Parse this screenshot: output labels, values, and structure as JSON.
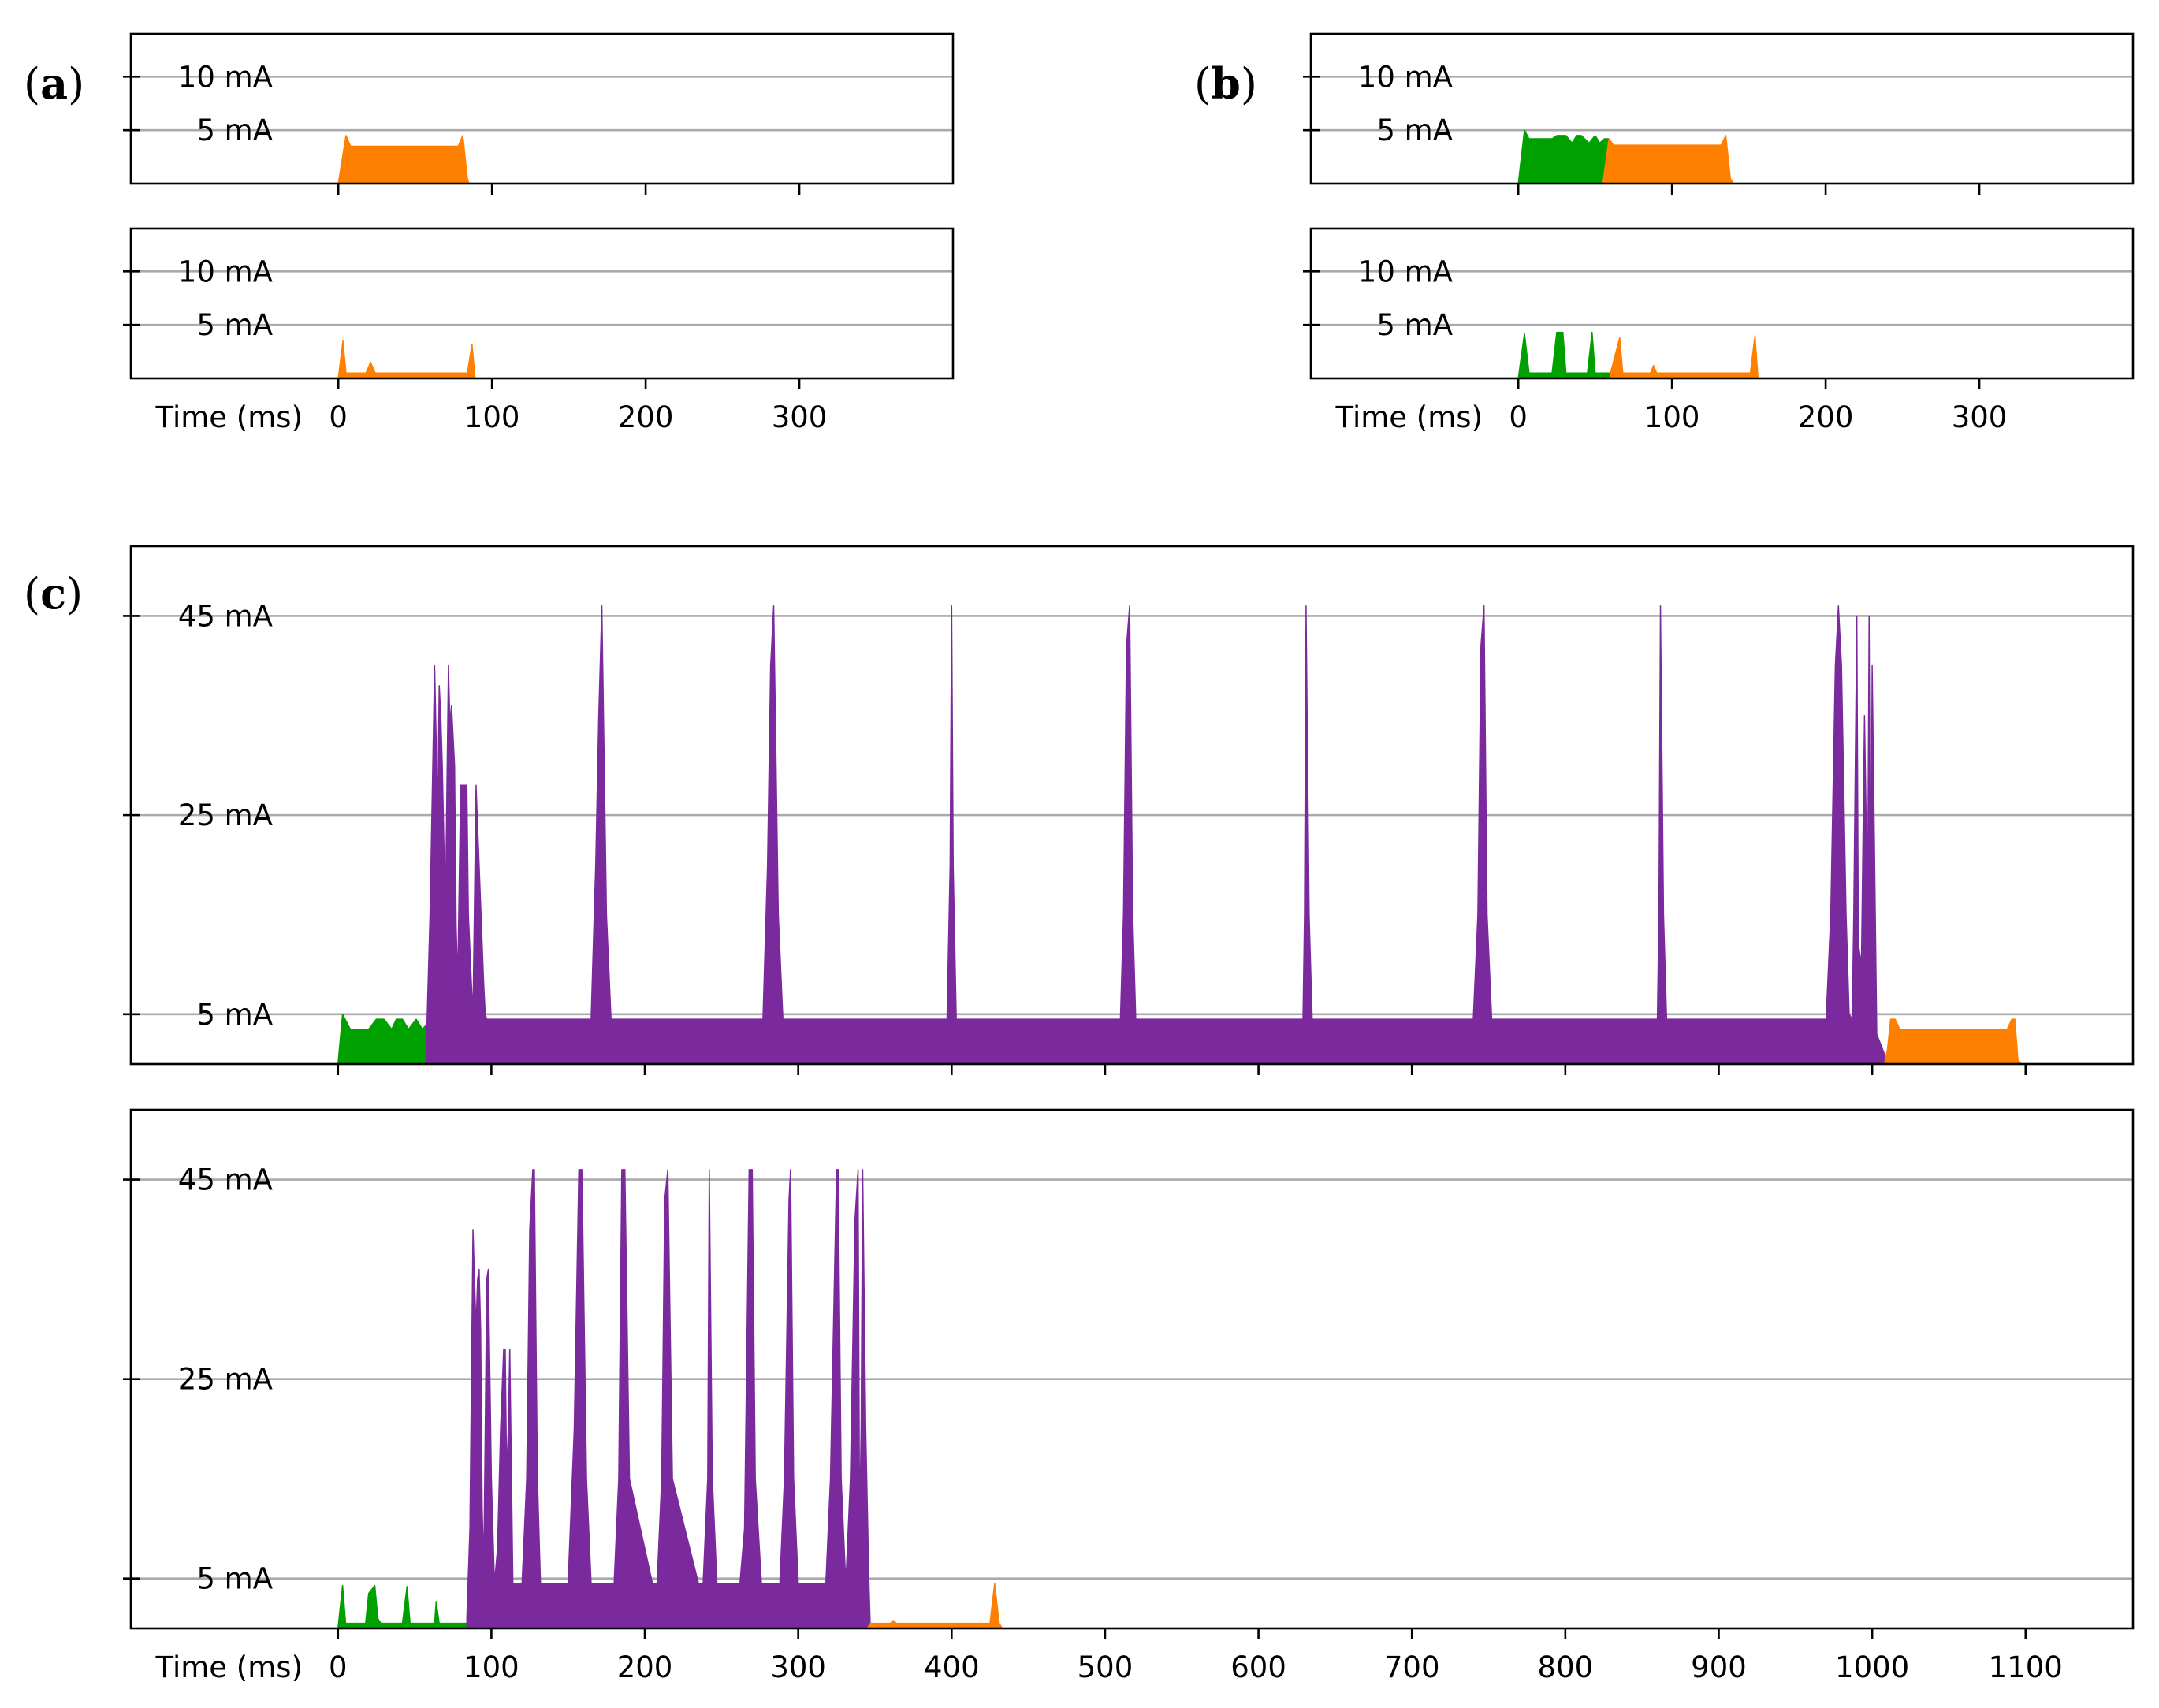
{
  "panel_labels": {
    "a": "a",
    "b": "b",
    "c": "c"
  },
  "colors": {
    "orange": "#ff8000",
    "green": "#00a000",
    "purple": "#7b2a9e",
    "grid": "#aaaaaa"
  },
  "chart_data": [
    {
      "id": "a-top",
      "panel": "a",
      "type": "area",
      "xlabel": "",
      "ylabel": "",
      "xlim": [
        -135,
        400
      ],
      "ylim": [
        0,
        14
      ],
      "yticks": [
        {
          "value": 5,
          "label": "5 mA"
        },
        {
          "value": 10,
          "label": "10 mA"
        }
      ],
      "xticks": [
        {
          "value": 0,
          "label": ""
        },
        {
          "value": 100,
          "label": ""
        },
        {
          "value": 200,
          "label": ""
        },
        {
          "value": 300,
          "label": ""
        }
      ],
      "grid": true,
      "series": [
        {
          "color_key": "orange",
          "x": [
            0,
            5,
            8,
            12,
            78,
            81,
            84,
            85
          ],
          "y": [
            0,
            4.5,
            3.5,
            3.5,
            3.5,
            4.5,
            0.5,
            0
          ]
        }
      ]
    },
    {
      "id": "a-bottom",
      "panel": "a",
      "type": "area",
      "xlabel": "Time (ms)",
      "ylabel": "",
      "xlim": [
        -135,
        400
      ],
      "ylim": [
        0,
        14
      ],
      "yticks": [
        {
          "value": 5,
          "label": "5 mA"
        },
        {
          "value": 10,
          "label": "10 mA"
        }
      ],
      "xticks": [
        {
          "value": 0,
          "label": "0"
        },
        {
          "value": 100,
          "label": "100"
        },
        {
          "value": 200,
          "label": "200"
        },
        {
          "value": 300,
          "label": "300"
        }
      ],
      "grid": true,
      "series": [
        {
          "color_key": "orange",
          "x": [
            0,
            3,
            5,
            8,
            18,
            21,
            24,
            84,
            87,
            89
          ],
          "y": [
            0,
            3.5,
            0.5,
            0.5,
            0.5,
            1.5,
            0.5,
            0.5,
            3.2,
            0
          ]
        }
      ]
    },
    {
      "id": "b-top",
      "panel": "b",
      "type": "area",
      "xlabel": "",
      "ylabel": "",
      "xlim": [
        -135,
        400
      ],
      "ylim": [
        0,
        14
      ],
      "yticks": [
        {
          "value": 5,
          "label": "5 mA"
        },
        {
          "value": 10,
          "label": "10 mA"
        }
      ],
      "xticks": [
        {
          "value": 0,
          "label": ""
        },
        {
          "value": 100,
          "label": ""
        },
        {
          "value": 200,
          "label": ""
        },
        {
          "value": 300,
          "label": ""
        }
      ],
      "grid": true,
      "series": [
        {
          "color_key": "green",
          "x": [
            0,
            4,
            7,
            10,
            22,
            25,
            31,
            35,
            38,
            41,
            46,
            50,
            53,
            56,
            59
          ],
          "y": [
            0,
            5,
            4.2,
            4.2,
            4.2,
            4.5,
            4.5,
            3.8,
            4.5,
            4.5,
            3.8,
            4.5,
            3.8,
            4.2,
            4.2
          ]
        },
        {
          "color_key": "orange",
          "x": [
            55,
            59,
            62,
            65,
            132,
            135,
            138,
            140
          ],
          "y": [
            0,
            4.2,
            3.6,
            3.6,
            3.6,
            4.5,
            0.5,
            0
          ]
        }
      ]
    },
    {
      "id": "b-bottom",
      "panel": "b",
      "type": "area",
      "xlabel": "Time (ms)",
      "ylabel": "",
      "xlim": [
        -135,
        400
      ],
      "ylim": [
        0,
        14
      ],
      "yticks": [
        {
          "value": 5,
          "label": "5 mA"
        },
        {
          "value": 10,
          "label": "10 mA"
        }
      ],
      "xticks": [
        {
          "value": 0,
          "label": "0"
        },
        {
          "value": 100,
          "label": "100"
        },
        {
          "value": 200,
          "label": "200"
        },
        {
          "value": 300,
          "label": "300"
        }
      ],
      "grid": true,
      "series": [
        {
          "color_key": "green",
          "x": [
            0,
            4,
            7,
            10,
            22,
            25,
            29,
            31,
            35,
            45,
            48,
            50,
            53,
            60,
            62
          ],
          "y": [
            0,
            4.2,
            0.5,
            0.5,
            0.5,
            4.3,
            4.3,
            0.5,
            0.5,
            0.5,
            4.3,
            0.5,
            0.5,
            0.5,
            0.5
          ]
        },
        {
          "color_key": "orange",
          "x": [
            60,
            66,
            68,
            70,
            86,
            88,
            90,
            151,
            154,
            156
          ],
          "y": [
            0.5,
            3.8,
            0.5,
            0.5,
            0.5,
            1.2,
            0.5,
            0.5,
            4,
            0
          ]
        }
      ]
    },
    {
      "id": "c-top",
      "panel": "c",
      "type": "area",
      "xlabel": "",
      "ylabel": "",
      "xlim": [
        -135,
        1170
      ],
      "ylim": [
        0,
        52
      ],
      "yticks": [
        {
          "value": 5,
          "label": "5 mA"
        },
        {
          "value": 25,
          "label": "25 mA"
        },
        {
          "value": 45,
          "label": "45 mA"
        }
      ],
      "xticks": [
        {
          "value": 0,
          "label": ""
        },
        {
          "value": 100,
          "label": ""
        },
        {
          "value": 200,
          "label": ""
        },
        {
          "value": 300,
          "label": ""
        },
        {
          "value": 400,
          "label": ""
        },
        {
          "value": 500,
          "label": ""
        },
        {
          "value": 600,
          "label": ""
        },
        {
          "value": 700,
          "label": ""
        },
        {
          "value": 800,
          "label": ""
        },
        {
          "value": 900,
          "label": ""
        },
        {
          "value": 1000,
          "label": ""
        },
        {
          "value": 1100,
          "label": ""
        }
      ],
      "grid": true,
      "series": [
        {
          "color_key": "green",
          "x": [
            0,
            3,
            8,
            20,
            25,
            30,
            35,
            38,
            42,
            46,
            51,
            55,
            58
          ],
          "y": [
            0,
            5,
            3.5,
            3.5,
            4.5,
            4.5,
            3.5,
            4.5,
            4.5,
            3.5,
            4.5,
            3.5,
            4
          ]
        },
        {
          "color_key": "purple",
          "x": [
            58,
            60,
            63,
            65,
            66,
            67,
            68,
            70,
            72,
            73,
            74,
            76,
            77,
            78,
            80,
            82,
            84,
            85,
            87,
            88,
            90,
            92,
            95,
            96,
            97,
            100,
            102,
            165,
            168,
            170,
            172,
            175,
            178,
            277,
            280,
            282,
            284,
            287,
            290,
            397,
            399,
            400,
            401,
            403,
            510,
            512,
            514,
            516,
            518,
            520,
            629,
            630,
            631,
            633,
            635,
            740,
            743,
            745,
            747,
            749,
            752,
            860,
            861,
            862,
            864,
            866,
            970,
            973,
            976,
            978,
            980,
            983,
            985,
            987,
            988,
            990,
            991,
            993,
            995,
            997,
            998,
            999,
            1000,
            1003,
            1008,
            1010
          ],
          "y": [
            4,
            15,
            40,
            25,
            38,
            35,
            30,
            15,
            40,
            34,
            36,
            30,
            14,
            8,
            28,
            28,
            28,
            15,
            8,
            5,
            28,
            20,
            8,
            5,
            4.5,
            4.5,
            4.5,
            4.5,
            20,
            35,
            46,
            15,
            4.5,
            4.5,
            20,
            40,
            46,
            15,
            4.5,
            4.5,
            20,
            46,
            20,
            4.5,
            4.5,
            15,
            42,
            46,
            15,
            4.5,
            4.5,
            15,
            46,
            15,
            4.5,
            4.5,
            15,
            42,
            46,
            15,
            4.5,
            4.5,
            15,
            46,
            15,
            4.5,
            4.5,
            15,
            40,
            46,
            40,
            15,
            5,
            4.5,
            15,
            45,
            12,
            10,
            35,
            15,
            45,
            12,
            40,
            3,
            1,
            0
          ]
        },
        {
          "color_key": "orange",
          "x": [
            1008,
            1010,
            1012,
            1015,
            1018,
            1020,
            1088,
            1091,
            1093,
            1095,
            1097
          ],
          "y": [
            0,
            1.5,
            4.5,
            4.5,
            3.5,
            3.5,
            3.5,
            4.5,
            4.5,
            0.5,
            0
          ]
        }
      ]
    },
    {
      "id": "c-bottom",
      "panel": "c",
      "type": "area",
      "xlabel": "Time (ms)",
      "ylabel": "",
      "xlim": [
        -135,
        1170
      ],
      "ylim": [
        0,
        52
      ],
      "yticks": [
        {
          "value": 5,
          "label": "5 mA"
        },
        {
          "value": 25,
          "label": "25 mA"
        },
        {
          "value": 45,
          "label": "45 mA"
        }
      ],
      "xticks": [
        {
          "value": 0,
          "label": "0"
        },
        {
          "value": 100,
          "label": "100"
        },
        {
          "value": 200,
          "label": "200"
        },
        {
          "value": 300,
          "label": "300"
        },
        {
          "value": 400,
          "label": "400"
        },
        {
          "value": 500,
          "label": "500"
        },
        {
          "value": 600,
          "label": "600"
        },
        {
          "value": 700,
          "label": "700"
        },
        {
          "value": 800,
          "label": "800"
        },
        {
          "value": 900,
          "label": "900"
        },
        {
          "value": 1000,
          "label": "1000"
        },
        {
          "value": 1100,
          "label": "1100"
        }
      ],
      "grid": true,
      "series": [
        {
          "color_key": "green",
          "x": [
            0,
            3,
            5,
            8,
            18,
            20,
            24,
            26,
            28,
            30,
            42,
            45,
            47,
            60,
            63,
            64,
            66,
            84,
            85
          ],
          "y": [
            0,
            4.3,
            0.5,
            0.5,
            0.5,
            3.5,
            4.3,
            1,
            0.5,
            0.5,
            0.5,
            4.2,
            0.5,
            0.5,
            0.5,
            2.7,
            0.5,
            0.5,
            0.5
          ]
        },
        {
          "color_key": "purple",
          "x": [
            84,
            86,
            88,
            90,
            91,
            92,
            93,
            94,
            95,
            96,
            97,
            98,
            100,
            102,
            104,
            106,
            108,
            109,
            110,
            111,
            112,
            114,
            116,
            120,
            123,
            125,
            127,
            128,
            130,
            132,
            135,
            150,
            154,
            157,
            159,
            162,
            165,
            180,
            183,
            185,
            187,
            190,
            205,
            208,
            211,
            213,
            215,
            218,
            235,
            238,
            241,
            242,
            244,
            247,
            262,
            265,
            268,
            270,
            272,
            276,
            288,
            291,
            294,
            295,
            297,
            300,
            318,
            321,
            325,
            326,
            328,
            331,
            334,
            337,
            339,
            340,
            341,
            342,
            344,
            346,
            347
          ],
          "y": [
            1,
            10,
            40,
            30,
            35,
            36,
            30,
            12,
            6,
            20,
            35,
            36,
            15,
            4.5,
            8,
            20,
            28,
            28,
            15,
            20,
            28,
            4.5,
            4.5,
            4.5,
            15,
            40,
            46,
            46,
            15,
            4.5,
            4.5,
            4.5,
            20,
            46,
            46,
            15,
            4.5,
            4.5,
            15,
            46,
            46,
            15,
            4.5,
            4.5,
            15,
            43,
            46,
            15,
            4.5,
            4.5,
            15,
            46,
            15,
            4.5,
            4.5,
            10,
            46,
            46,
            15,
            4.5,
            4.5,
            15,
            43,
            46,
            15,
            4.5,
            4.5,
            15,
            46,
            46,
            15,
            4.5,
            15,
            41,
            46,
            10,
            20,
            46,
            20,
            5,
            0
          ]
        },
        {
          "color_key": "orange",
          "x": [
            345,
            347,
            360,
            362,
            364,
            366,
            425,
            428,
            431,
            433
          ],
          "y": [
            0,
            0.5,
            0.5,
            0.8,
            0.5,
            0.5,
            0.5,
            4.5,
            0.5,
            0
          ]
        }
      ]
    }
  ]
}
